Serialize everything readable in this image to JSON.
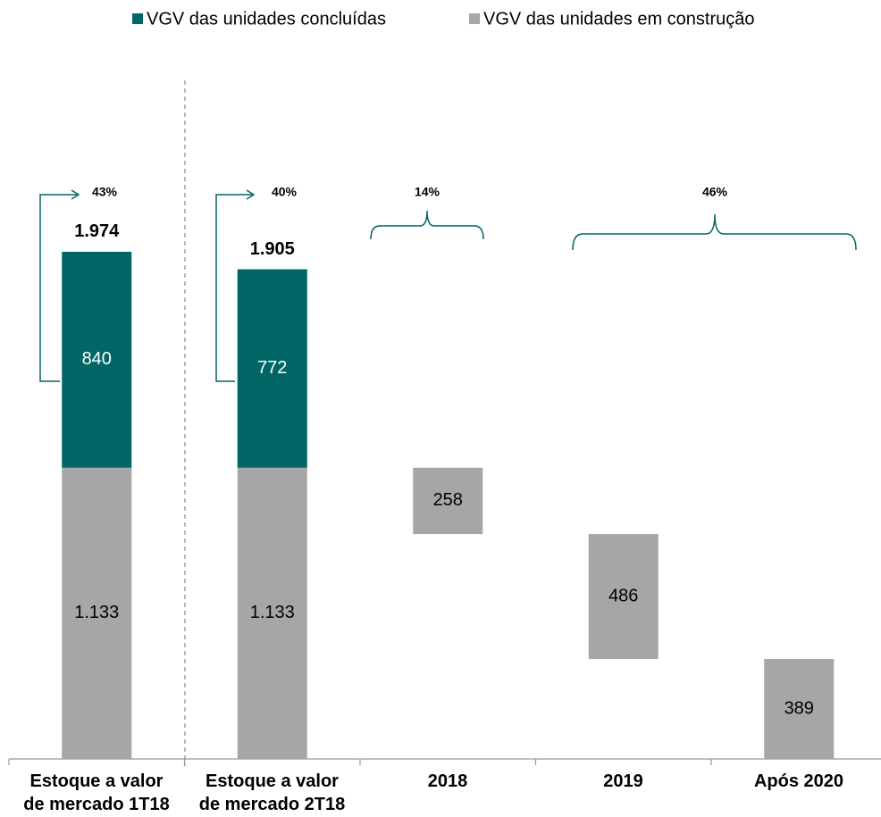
{
  "chart_data": {
    "type": "waterfall",
    "categories": [
      "Estoque a valor\nde mercado 1T18",
      "Estoque a valor\nde mercado 2T18",
      "2018",
      "2019",
      "Após 2020"
    ],
    "series": [
      {
        "name": "VGV das unidades concluídas",
        "color": "#006666",
        "values": [
          840,
          772,
          null,
          null,
          null
        ]
      },
      {
        "name": "VGV das unidades em construção",
        "color": "#a6a6a6",
        "values": [
          1133,
          1133,
          258,
          486,
          389
        ],
        "value_labels": [
          "1.133",
          "1.133",
          "258",
          "486",
          "389"
        ]
      }
    ],
    "totals": [
      1974,
      1905
    ],
    "total_labels": [
      "1.974",
      "1.905"
    ],
    "annotations": [
      "43%",
      "40%",
      "14%",
      "46%"
    ]
  }
}
